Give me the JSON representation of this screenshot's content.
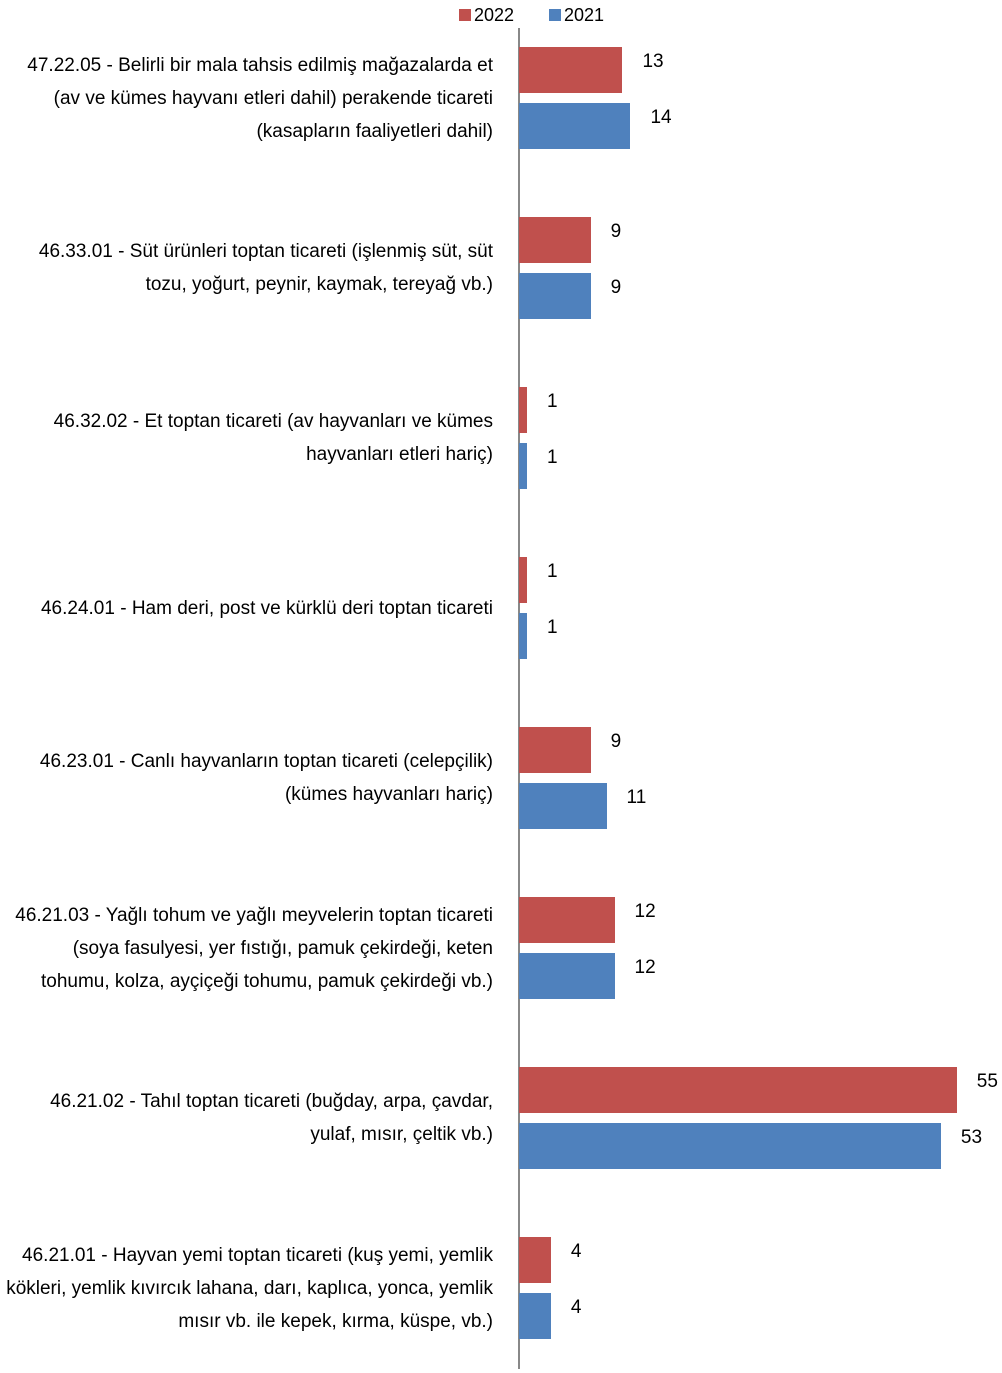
{
  "chart_data": {
    "type": "bar",
    "orientation": "horizontal",
    "categories": [
      "47.22.05 - Belirli bir mala tahsis edilmiş mağazalarda et (av ve kümes hayvanı etleri dahil) perakende ticareti (kasapların faaliyetleri dahil)",
      "46.33.01 - Süt ürünleri toptan ticareti (işlenmiş süt, süt tozu, yoğurt, peynir, kaymak, tereyağ vb.)",
      "46.32.02 - Et toptan ticareti (av hayvanları ve kümes hayvanları etleri hariç)",
      "46.24.01 - Ham deri, post ve kürklü deri toptan ticareti",
      "46.23.01 - Canlı hayvanların toptan ticareti (celepçilik) (kümes hayvanları hariç)",
      "46.21.03 - Yağlı tohum ve yağlı meyvelerin toptan ticareti (soya fasulyesi, yer fıstığı, pamuk çekirdeği, keten tohumu, kolza, ayçiçeği tohumu, pamuk çekirdeği vb.)",
      "46.21.02 - Tahıl toptan ticareti (buğday, arpa, çavdar, yulaf, mısır, çeltik vb.)",
      "46.21.01 - Hayvan yemi toptan ticareti (kuş yemi, yemlik kökleri, yemlik kıvırcık lahana, darı, kaplıca, yonca, yemlik mısır vb. ile kepek, kırma, küspe, vb.)"
    ],
    "series": [
      {
        "name": "2022",
        "color": "#c0504d",
        "values": [
          13,
          9,
          1,
          1,
          9,
          12,
          55,
          4
        ]
      },
      {
        "name": "2021",
        "color": "#4f81bd",
        "values": [
          14,
          9,
          1,
          1,
          11,
          12,
          53,
          4
        ]
      }
    ],
    "legend": "top"
  }
}
